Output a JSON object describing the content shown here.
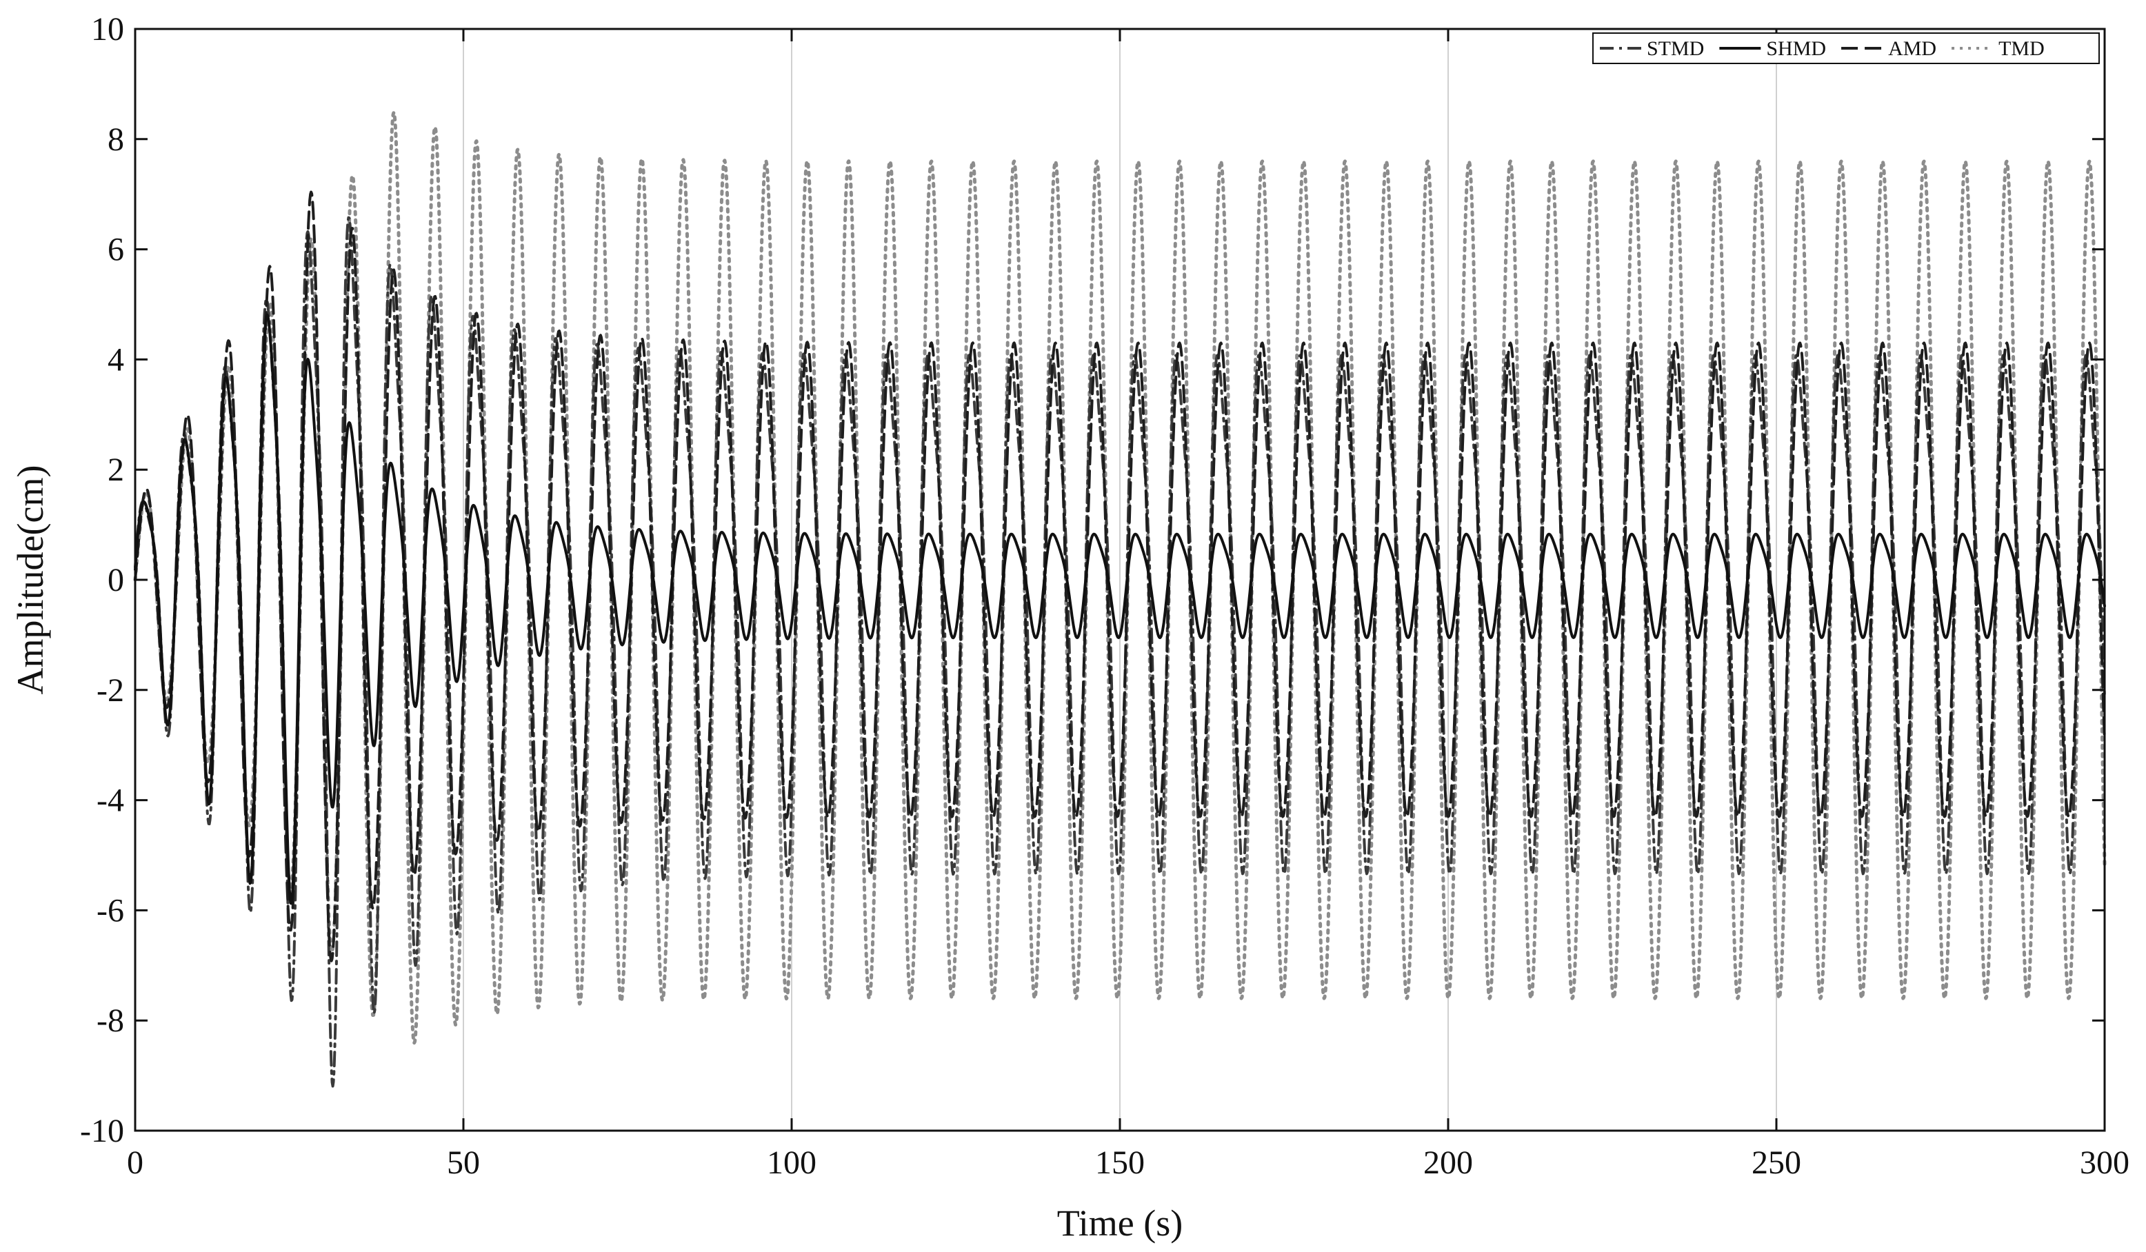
{
  "chart_data": {
    "type": "line",
    "title": "",
    "xlabel": "Time (s)",
    "ylabel": "Amplitude(cm)",
    "xlim": [
      0,
      300
    ],
    "ylim": [
      -10,
      10
    ],
    "xticks": [
      0,
      50,
      100,
      150,
      200,
      250,
      300
    ],
    "yticks": [
      -10,
      -8,
      -6,
      -4,
      -2,
      0,
      2,
      4,
      6,
      8,
      10
    ],
    "grid": "vertical-only",
    "legend": "top-right",
    "sampling": {
      "t_start": 0,
      "t_end": 300,
      "dt": 0.1
    },
    "series": [
      {
        "name": "STMD",
        "color": "#3a3a3a",
        "dash": "dash-dot",
        "envelope": {
          "rise_to": 7.6,
          "rise_end_t": 30,
          "decay_to": 4.4,
          "decay_tau": 15,
          "ripple": 0.25
        },
        "period_s": 6.3
      },
      {
        "name": "SHMD",
        "color": "#111111",
        "dash": "solid",
        "envelope": {
          "rise_to": 5.6,
          "rise_end_t": 22,
          "decay_to": 0.9,
          "decay_tau": 14,
          "ripple": 0.2
        },
        "period_s": 6.3
      },
      {
        "name": "AMD",
        "color": "#1e1e1e",
        "dash": "dashed",
        "envelope": {
          "rise_to": 7.3,
          "rise_end_t": 28,
          "decay_to": 4.3,
          "decay_tau": 14,
          "ripple": 0.1
        },
        "period_s": 6.3
      },
      {
        "name": "TMD",
        "color": "#8c8c8c",
        "dash": "dotted",
        "envelope": {
          "rise_to": 8.6,
          "rise_end_t": 40,
          "decay_to": 7.6,
          "decay_tau": 12,
          "ripple": 0.02
        },
        "period_s": 6.3
      }
    ]
  }
}
